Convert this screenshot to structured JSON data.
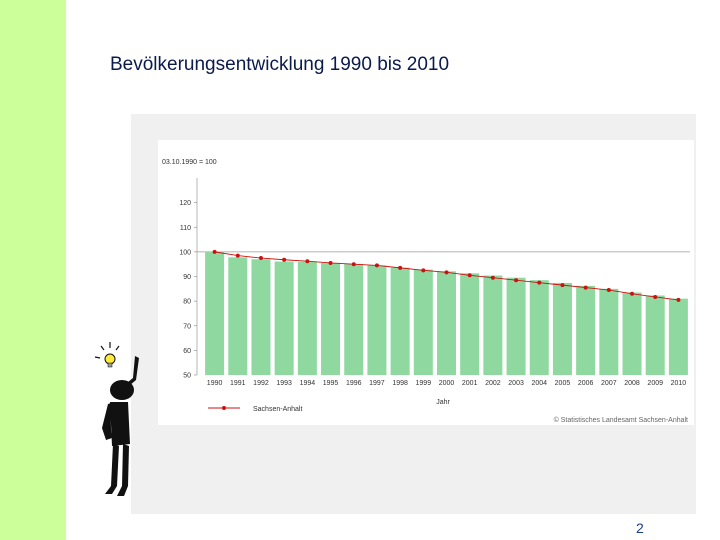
{
  "slide": {
    "title": "Bevölkerungsentwicklung 1990 bis 2010",
    "page_number": "2",
    "accent_color": "#ccff99"
  },
  "chart_data": {
    "type": "bar",
    "index_label": "03.10.1990 = 100",
    "xlabel": "Jahr",
    "ylim": [
      50,
      130
    ],
    "yticks": [
      50,
      60,
      70,
      80,
      90,
      100,
      110,
      120
    ],
    "reference_value": 100,
    "categories": [
      "1990",
      "1991",
      "1992",
      "1993",
      "1994",
      "1995",
      "1996",
      "1997",
      "1998",
      "1999",
      "2000",
      "2001",
      "2002",
      "2003",
      "2004",
      "2005",
      "2006",
      "2007",
      "2008",
      "2009",
      "2010"
    ],
    "series": [
      {
        "type": "bar",
        "color": "#8fd9a0",
        "values": [
          100.0,
          97.8,
          97.0,
          96.1,
          96.0,
          95.5,
          95.1,
          94.5,
          93.6,
          92.8,
          92.1,
          91.3,
          90.4,
          89.5,
          88.5,
          87.4,
          86.2,
          85.0,
          83.5,
          82.3,
          81.0
        ]
      },
      {
        "type": "line",
        "name": "Sachsen-Anhalt",
        "color": "#cc1111",
        "values": [
          100.0,
          98.5,
          97.5,
          96.8,
          96.2,
          95.5,
          95.0,
          94.5,
          93.5,
          92.5,
          91.7,
          90.5,
          89.5,
          88.5,
          87.5,
          86.5,
          85.5,
          84.5,
          83.0,
          81.7,
          80.5
        ]
      }
    ],
    "legend_position": "bottom-left",
    "source_note": "© Statistisches Landesamt Sachsen-Anhalt"
  }
}
